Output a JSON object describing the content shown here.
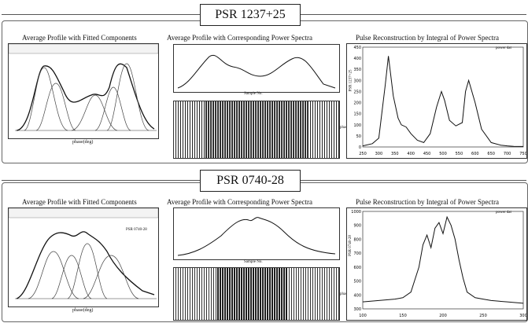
{
  "sections": [
    {
      "title": "PSR 1237+25",
      "panels": [
        {
          "title": "Average Profile with Fitted Components",
          "xlabel": "phase(deg)"
        },
        {
          "title": "Average Profile with Corresponding Power Spectra",
          "xlabel": "Sample No.",
          "ylabel": "phase"
        },
        {
          "title": "Pulse Reconstruction by Integral of Power Spectra",
          "legend": "power dat",
          "ylabel": "PSR 1237+25"
        }
      ]
    },
    {
      "title": "PSR 0740-28",
      "panels": [
        {
          "title": "Average Profile with Fitted Components",
          "xlabel": "phase(deg)",
          "inset": "PSR 0740-28"
        },
        {
          "title": "Average Profile with Corresponding Power Spectra",
          "xlabel": "Sample No.",
          "ylabel": "phase"
        },
        {
          "title": "Pulse Reconstruction by Integral of Power Spectra",
          "legend": "power dat",
          "ylabel": "PSR 0740-28"
        }
      ]
    }
  ],
  "chart_data": [
    {
      "type": "line",
      "title": "Pulse Reconstruction by Integral of Power Spectra",
      "series": [
        {
          "name": "power dat",
          "x": [
            250,
            280,
            300,
            320,
            330,
            345,
            360,
            370,
            385,
            400,
            420,
            440,
            460,
            480,
            495,
            505,
            520,
            540,
            560,
            570,
            580,
            600,
            620,
            650,
            680,
            700,
            720,
            750
          ],
          "y": [
            5,
            15,
            40,
            280,
            410,
            230,
            130,
            100,
            90,
            60,
            30,
            20,
            60,
            180,
            250,
            210,
            120,
            95,
            110,
            250,
            300,
            200,
            80,
            20,
            8,
            5,
            3,
            2
          ]
        }
      ],
      "xlim": [
        250,
        750
      ],
      "ylim": [
        0,
        450
      ],
      "xticks": [
        250,
        300,
        350,
        400,
        450,
        500,
        550,
        600,
        650,
        700,
        750
      ],
      "yticks": [
        0,
        50,
        100,
        150,
        200,
        250,
        300,
        350,
        400,
        450
      ]
    },
    {
      "type": "line",
      "title": "Pulse Reconstruction by Integral of Power Spectra",
      "series": [
        {
          "name": "power dat",
          "x": [
            100,
            120,
            140,
            150,
            160,
            170,
            175,
            180,
            185,
            190,
            195,
            200,
            205,
            210,
            215,
            220,
            225,
            230,
            240,
            250,
            260,
            270,
            280,
            290,
            300
          ],
          "y": [
            350,
            360,
            370,
            380,
            420,
            600,
            760,
            830,
            740,
            880,
            920,
            840,
            960,
            900,
            800,
            650,
            520,
            420,
            380,
            370,
            360,
            355,
            350,
            345,
            340
          ]
        }
      ],
      "xlim": [
        100,
        300
      ],
      "ylim": [
        300,
        1000
      ],
      "xticks": [
        100,
        150,
        200,
        250,
        300
      ],
      "yticks": [
        300,
        400,
        500,
        600,
        700,
        800,
        900,
        1000
      ]
    }
  ]
}
